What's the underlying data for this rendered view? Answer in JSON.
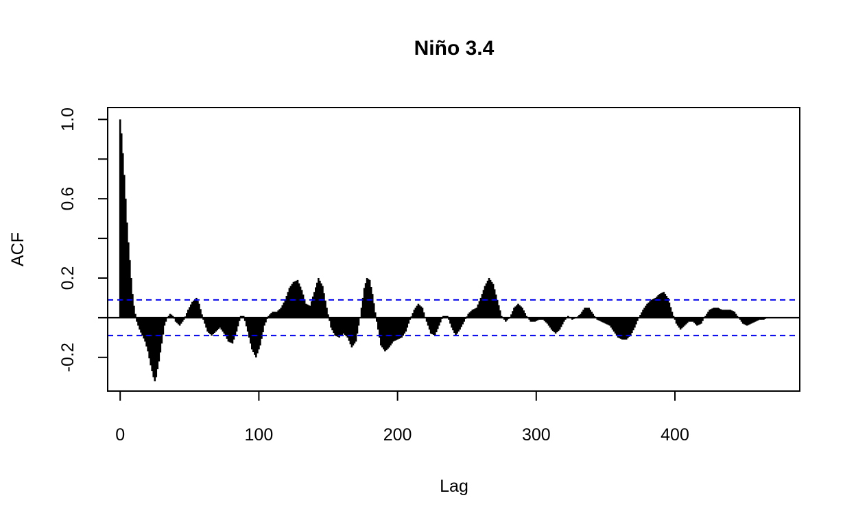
{
  "chart_data": {
    "type": "bar",
    "title": "Niño 3.4",
    "xlabel": "Lag",
    "ylabel": "ACF",
    "xlim": [
      -9,
      490
    ],
    "ylim": [
      -0.37,
      1.06
    ],
    "x_ticks": [
      {
        "value": 0,
        "label": "0"
      },
      {
        "value": 100,
        "label": "100"
      },
      {
        "value": 200,
        "label": "200"
      },
      {
        "value": 300,
        "label": "300"
      },
      {
        "value": 400,
        "label": "400"
      }
    ],
    "y_ticks": [
      {
        "value": -0.2,
        "label": "-0.2"
      },
      {
        "value": 0.2,
        "label": "0.2"
      },
      {
        "value": 0.6,
        "label": "0.6"
      },
      {
        "value": 1.0,
        "label": "1.0"
      }
    ],
    "y_minor_ticks": [
      0.0,
      0.4,
      0.8
    ],
    "confidence_bounds": [
      0.09,
      -0.09
    ],
    "confidence_color": "#0000ff",
    "bar_color": "#000000",
    "grid": false,
    "acf_profile": [
      [
        0,
        1.0
      ],
      [
        1,
        0.93
      ],
      [
        2,
        0.83
      ],
      [
        3,
        0.72
      ],
      [
        4,
        0.6
      ],
      [
        5,
        0.48
      ],
      [
        6,
        0.38
      ],
      [
        7,
        0.29
      ],
      [
        8,
        0.2
      ],
      [
        9,
        0.12
      ],
      [
        10,
        0.06
      ],
      [
        11,
        0.02
      ],
      [
        12,
        -0.02
      ],
      [
        14,
        -0.06
      ],
      [
        16,
        -0.09
      ],
      [
        18,
        -0.12
      ],
      [
        20,
        -0.17
      ],
      [
        22,
        -0.24
      ],
      [
        24,
        -0.3
      ],
      [
        25,
        -0.32
      ],
      [
        26,
        -0.3
      ],
      [
        28,
        -0.22
      ],
      [
        30,
        -0.13
      ],
      [
        32,
        -0.04
      ],
      [
        34,
        0.0
      ],
      [
        36,
        0.02
      ],
      [
        38,
        0.01
      ],
      [
        40,
        -0.02
      ],
      [
        43,
        -0.04
      ],
      [
        46,
        -0.01
      ],
      [
        49,
        0.04
      ],
      [
        52,
        0.08
      ],
      [
        55,
        0.1
      ],
      [
        57,
        0.07
      ],
      [
        60,
        -0.01
      ],
      [
        63,
        -0.07
      ],
      [
        66,
        -0.09
      ],
      [
        69,
        -0.07
      ],
      [
        72,
        -0.05
      ],
      [
        75,
        -0.08
      ],
      [
        78,
        -0.12
      ],
      [
        81,
        -0.13
      ],
      [
        84,
        -0.07
      ],
      [
        87,
        0.01
      ],
      [
        89,
        0.01
      ],
      [
        92,
        -0.07
      ],
      [
        95,
        -0.16
      ],
      [
        98,
        -0.2
      ],
      [
        101,
        -0.14
      ],
      [
        104,
        -0.04
      ],
      [
        107,
        0.01
      ],
      [
        110,
        0.03
      ],
      [
        113,
        0.03
      ],
      [
        116,
        0.05
      ],
      [
        119,
        0.09
      ],
      [
        122,
        0.15
      ],
      [
        125,
        0.18
      ],
      [
        128,
        0.19
      ],
      [
        131,
        0.14
      ],
      [
        134,
        0.07
      ],
      [
        137,
        0.06
      ],
      [
        140,
        0.13
      ],
      [
        143,
        0.2
      ],
      [
        146,
        0.16
      ],
      [
        149,
        0.05
      ],
      [
        152,
        -0.05
      ],
      [
        155,
        -0.09
      ],
      [
        158,
        -0.1
      ],
      [
        161,
        -0.08
      ],
      [
        164,
        -0.1
      ],
      [
        167,
        -0.15
      ],
      [
        170,
        -0.12
      ],
      [
        173,
        0.0
      ],
      [
        176,
        0.15
      ],
      [
        178,
        0.2
      ],
      [
        180,
        0.19
      ],
      [
        182,
        0.12
      ],
      [
        185,
        -0.02
      ],
      [
        188,
        -0.14
      ],
      [
        191,
        -0.17
      ],
      [
        194,
        -0.15
      ],
      [
        197,
        -0.12
      ],
      [
        200,
        -0.11
      ],
      [
        203,
        -0.1
      ],
      [
        206,
        -0.07
      ],
      [
        209,
        -0.01
      ],
      [
        212,
        0.04
      ],
      [
        215,
        0.07
      ],
      [
        218,
        0.05
      ],
      [
        221,
        -0.02
      ],
      [
        224,
        -0.08
      ],
      [
        227,
        -0.09
      ],
      [
        230,
        -0.04
      ],
      [
        233,
        0.01
      ],
      [
        236,
        0.01
      ],
      [
        239,
        -0.05
      ],
      [
        242,
        -0.09
      ],
      [
        245,
        -0.06
      ],
      [
        248,
        -0.02
      ],
      [
        251,
        0.02
      ],
      [
        254,
        0.04
      ],
      [
        257,
        0.05
      ],
      [
        260,
        0.1
      ],
      [
        263,
        0.16
      ],
      [
        266,
        0.2
      ],
      [
        269,
        0.17
      ],
      [
        272,
        0.09
      ],
      [
        275,
        0.01
      ],
      [
        278,
        -0.02
      ],
      [
        281,
        0.0
      ],
      [
        284,
        0.05
      ],
      [
        287,
        0.07
      ],
      [
        290,
        0.05
      ],
      [
        293,
        0.01
      ],
      [
        296,
        -0.02
      ],
      [
        299,
        -0.02
      ],
      [
        302,
        -0.01
      ],
      [
        305,
        -0.01
      ],
      [
        308,
        -0.03
      ],
      [
        311,
        -0.06
      ],
      [
        314,
        -0.08
      ],
      [
        317,
        -0.06
      ],
      [
        320,
        -0.02
      ],
      [
        323,
        0.01
      ],
      [
        326,
        -0.01
      ],
      [
        329,
        0.0
      ],
      [
        332,
        0.02
      ],
      [
        335,
        0.05
      ],
      [
        338,
        0.05
      ],
      [
        341,
        0.02
      ],
      [
        344,
        -0.01
      ],
      [
        347,
        -0.02
      ],
      [
        350,
        -0.03
      ],
      [
        353,
        -0.04
      ],
      [
        356,
        -0.07
      ],
      [
        359,
        -0.1
      ],
      [
        362,
        -0.11
      ],
      [
        365,
        -0.11
      ],
      [
        368,
        -0.09
      ],
      [
        371,
        -0.05
      ],
      [
        374,
        0.0
      ],
      [
        377,
        0.04
      ],
      [
        380,
        0.07
      ],
      [
        383,
        0.09
      ],
      [
        386,
        0.1
      ],
      [
        389,
        0.12
      ],
      [
        392,
        0.13
      ],
      [
        395,
        0.1
      ],
      [
        398,
        0.03
      ],
      [
        401,
        -0.03
      ],
      [
        404,
        -0.06
      ],
      [
        407,
        -0.04
      ],
      [
        410,
        -0.02
      ],
      [
        413,
        -0.02
      ],
      [
        416,
        -0.04
      ],
      [
        419,
        -0.03
      ],
      [
        422,
        0.01
      ],
      [
        425,
        0.04
      ],
      [
        428,
        0.05
      ],
      [
        431,
        0.05
      ],
      [
        434,
        0.04
      ],
      [
        437,
        0.04
      ],
      [
        440,
        0.04
      ],
      [
        443,
        0.03
      ],
      [
        446,
        0.0
      ],
      [
        449,
        -0.03
      ],
      [
        452,
        -0.04
      ],
      [
        455,
        -0.03
      ],
      [
        458,
        -0.02
      ],
      [
        461,
        -0.01
      ],
      [
        464,
        -0.01
      ],
      [
        467,
        0.0
      ],
      [
        470,
        0.0
      ]
    ]
  }
}
